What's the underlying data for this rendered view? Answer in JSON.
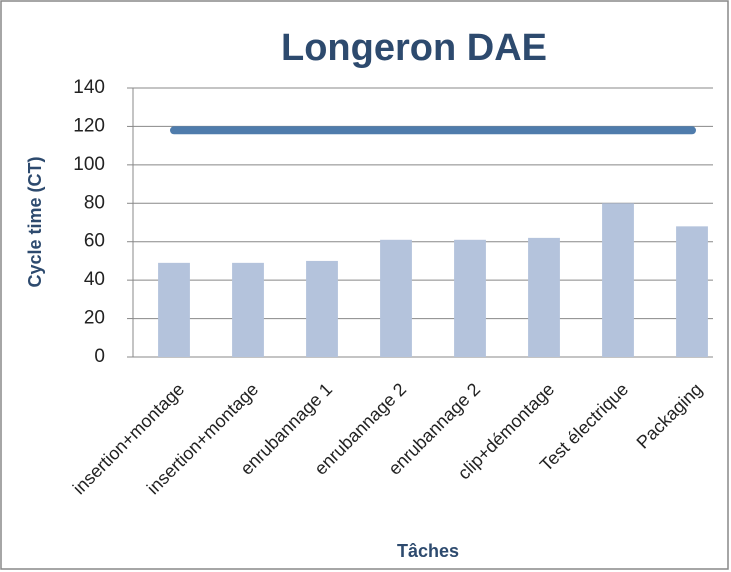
{
  "chart_data": {
    "type": "bar",
    "title": "Longeron DAE",
    "x_label": "Tâches",
    "y_label": "Cycle time (CT)",
    "categories": [
      "insertion+montage",
      "insertion+montage",
      "enrubannage 1",
      "enrubannage 2",
      "enrubannage 2",
      "clip+démontage",
      "Test électrique",
      "Packaging"
    ],
    "series": [
      {
        "type": "bar",
        "color": "#b4c3dc",
        "values": [
          49,
          49,
          50,
          61,
          61,
          62,
          80,
          68
        ]
      },
      {
        "type": "line",
        "color": "#4f7cac",
        "values": [
          118,
          118,
          118,
          118,
          118,
          118,
          118,
          118
        ]
      }
    ],
    "ylim": [
      0,
      140
    ],
    "yticks": [
      0,
      20,
      40,
      60,
      80,
      100,
      120,
      140
    ],
    "grid": true
  }
}
